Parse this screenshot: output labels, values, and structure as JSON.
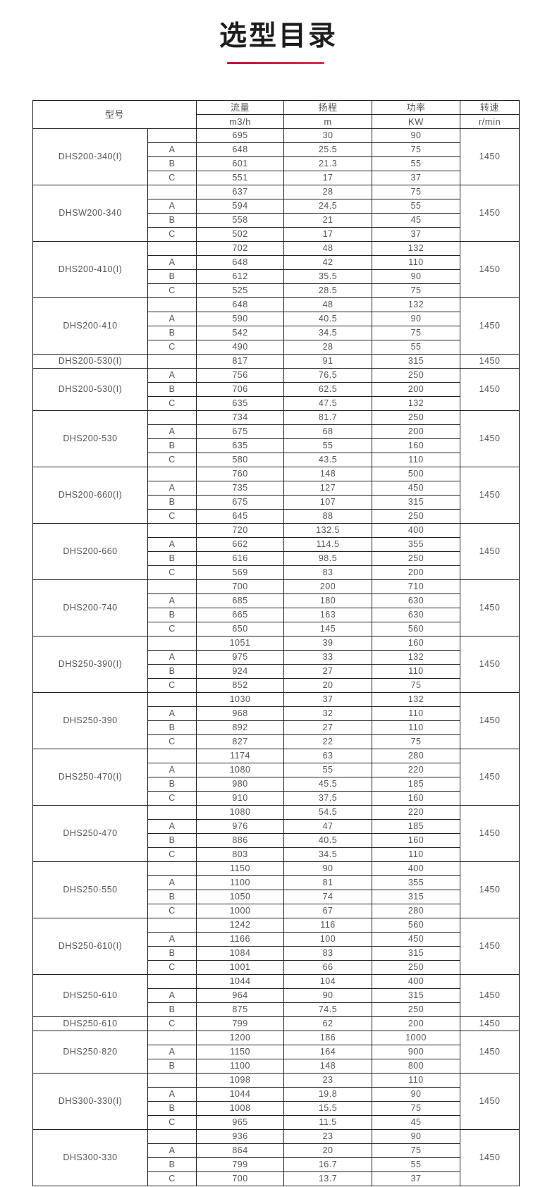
{
  "title": "选型目录",
  "accent_color": "#c8183e",
  "header": {
    "model": "型号",
    "columns": [
      {
        "label": "流量",
        "unit": "m3/h"
      },
      {
        "label": "扬程",
        "unit": "m"
      },
      {
        "label": "功率",
        "unit": "KW"
      },
      {
        "label": "转速",
        "unit": "r/min"
      }
    ]
  },
  "groups": [
    {
      "model": "DHS200-340(I)",
      "speed": "1450",
      "rows": [
        [
          "",
          "695",
          "30",
          "90"
        ],
        [
          "A",
          "648",
          "25.5",
          "75"
        ],
        [
          "B",
          "601",
          "21.3",
          "55"
        ],
        [
          "C",
          "551",
          "17",
          "37"
        ]
      ]
    },
    {
      "model": "DHSW200-340",
      "speed": "1450",
      "rows": [
        [
          "",
          "637",
          "28",
          "75"
        ],
        [
          "A",
          "594",
          "24.5",
          "55"
        ],
        [
          "B",
          "558",
          "21",
          "45"
        ],
        [
          "C",
          "502",
          "17",
          "37"
        ]
      ]
    },
    {
      "model": "DHS200-410(I)",
      "speed": "1450",
      "rows": [
        [
          "",
          "702",
          "48",
          "132"
        ],
        [
          "A",
          "648",
          "42",
          "110"
        ],
        [
          "B",
          "612",
          "35.5",
          "90"
        ],
        [
          "C",
          "525",
          "28.5",
          "75"
        ]
      ]
    },
    {
      "model": "DHS200-410",
      "speed": "1450",
      "rows": [
        [
          "",
          "648",
          "48",
          "132"
        ],
        [
          "A",
          "590",
          "40.5",
          "90"
        ],
        [
          "B",
          "542",
          "34.5",
          "75"
        ],
        [
          "C",
          "490",
          "28",
          "55"
        ]
      ]
    },
    {
      "model": "DHS200-530(I)",
      "speed": "1450",
      "rows": [
        [
          "",
          "817",
          "91",
          "315"
        ]
      ]
    },
    {
      "model": "DHS200-530(I)",
      "speed": "1450",
      "rows": [
        [
          "A",
          "756",
          "76.5",
          "250"
        ],
        [
          "B",
          "706",
          "62.5",
          "200"
        ],
        [
          "C",
          "635",
          "47.5",
          "132"
        ]
      ]
    },
    {
      "model": "DHS200-530",
      "speed": "1450",
      "rows": [
        [
          "",
          "734",
          "81.7",
          "250"
        ],
        [
          "A",
          "675",
          "68",
          "200"
        ],
        [
          "B",
          "635",
          "55",
          "160"
        ],
        [
          "C",
          "580",
          "43.5",
          "110"
        ]
      ]
    },
    {
      "model": "DHS200-660(I)",
      "speed": "1450",
      "rows": [
        [
          "",
          "760",
          "148",
          "500"
        ],
        [
          "A",
          "735",
          "127",
          "450"
        ],
        [
          "B",
          "675",
          "107",
          "315"
        ],
        [
          "C",
          "645",
          "88",
          "250"
        ]
      ]
    },
    {
      "model": "DHS200-660",
      "speed": "1450",
      "rows": [
        [
          "",
          "720",
          "132.5",
          "400"
        ],
        [
          "A",
          "662",
          "114.5",
          "355"
        ],
        [
          "B",
          "616",
          "98.5",
          "250"
        ],
        [
          "C",
          "569",
          "83",
          "200"
        ]
      ]
    },
    {
      "model": "DHS200-740",
      "speed": "1450",
      "rows": [
        [
          "",
          "700",
          "200",
          "710"
        ],
        [
          "A",
          "685",
          "180",
          "630"
        ],
        [
          "B",
          "665",
          "163",
          "630"
        ],
        [
          "C",
          "650",
          "145",
          "560"
        ]
      ]
    },
    {
      "model": "DHS250-390(I)",
      "speed": "1450",
      "rows": [
        [
          "",
          "1051",
          "39",
          "160"
        ],
        [
          "A",
          "975",
          "33",
          "132"
        ],
        [
          "B",
          "924",
          "27",
          "110"
        ],
        [
          "C",
          "852",
          "20",
          "75"
        ]
      ]
    },
    {
      "model": "DHS250-390",
      "speed": "1450",
      "rows": [
        [
          "",
          "1030",
          "37",
          "132"
        ],
        [
          "A",
          "968",
          "32",
          "110"
        ],
        [
          "B",
          "892",
          "27",
          "110"
        ],
        [
          "C",
          "827",
          "22",
          "75"
        ]
      ]
    },
    {
      "model": "DHS250-470(I)",
      "speed": "1450",
      "rows": [
        [
          "",
          "1174",
          "63",
          "280"
        ],
        [
          "A",
          "1080",
          "55",
          "220"
        ],
        [
          "B",
          "980",
          "45.5",
          "185"
        ],
        [
          "C",
          "910",
          "37.5",
          "160"
        ]
      ]
    },
    {
      "model": "DHS250-470",
      "speed": "1450",
      "rows": [
        [
          "",
          "1080",
          "54.5",
          "220"
        ],
        [
          "A",
          "976",
          "47",
          "185"
        ],
        [
          "B",
          "886",
          "40.5",
          "160"
        ],
        [
          "C",
          "803",
          "34.5",
          "110"
        ]
      ]
    },
    {
      "model": "DHS250-550",
      "speed": "1450",
      "rows": [
        [
          "",
          "1150",
          "90",
          "400"
        ],
        [
          "A",
          "1100",
          "81",
          "355"
        ],
        [
          "B",
          "1050",
          "74",
          "315"
        ],
        [
          "C",
          "1000",
          "67",
          "280"
        ]
      ]
    },
    {
      "model": "DHS250-610(I)",
      "speed": "1450",
      "rows": [
        [
          "",
          "1242",
          "116",
          "560"
        ],
        [
          "A",
          "1166",
          "100",
          "450"
        ],
        [
          "B",
          "1084",
          "83",
          "315"
        ],
        [
          "C",
          "1001",
          "66",
          "250"
        ]
      ]
    },
    {
      "model": "DHS250-610",
      "speed": "1450",
      "rows": [
        [
          "",
          "1044",
          "104",
          "400"
        ],
        [
          "A",
          "964",
          "90",
          "315"
        ],
        [
          "B",
          "875",
          "74.5",
          "250"
        ]
      ]
    },
    {
      "model": "DHS250-610",
      "speed": "1450",
      "rows": [
        [
          "C",
          "799",
          "62",
          "200"
        ]
      ]
    },
    {
      "model": "DHS250-820",
      "speed": "1450",
      "rows": [
        [
          "",
          "1200",
          "186",
          "1000"
        ],
        [
          "A",
          "1150",
          "164",
          "900"
        ],
        [
          "B",
          "1100",
          "148",
          "800"
        ]
      ]
    },
    {
      "model": "DHS300-330(I)",
      "speed": "1450",
      "rows": [
        [
          "",
          "1098",
          "23",
          "110"
        ],
        [
          "A",
          "1044",
          "19.8",
          "90"
        ],
        [
          "B",
          "1008",
          "15.5",
          "75"
        ],
        [
          "C",
          "965",
          "11.5",
          "45"
        ]
      ]
    },
    {
      "model": "DHS300-330",
      "speed": "1450",
      "rows": [
        [
          "",
          "936",
          "23",
          "90"
        ],
        [
          "A",
          "864",
          "20",
          "75"
        ],
        [
          "B",
          "799",
          "16.7",
          "55"
        ],
        [
          "C",
          "700",
          "13.7",
          "37"
        ]
      ]
    }
  ]
}
